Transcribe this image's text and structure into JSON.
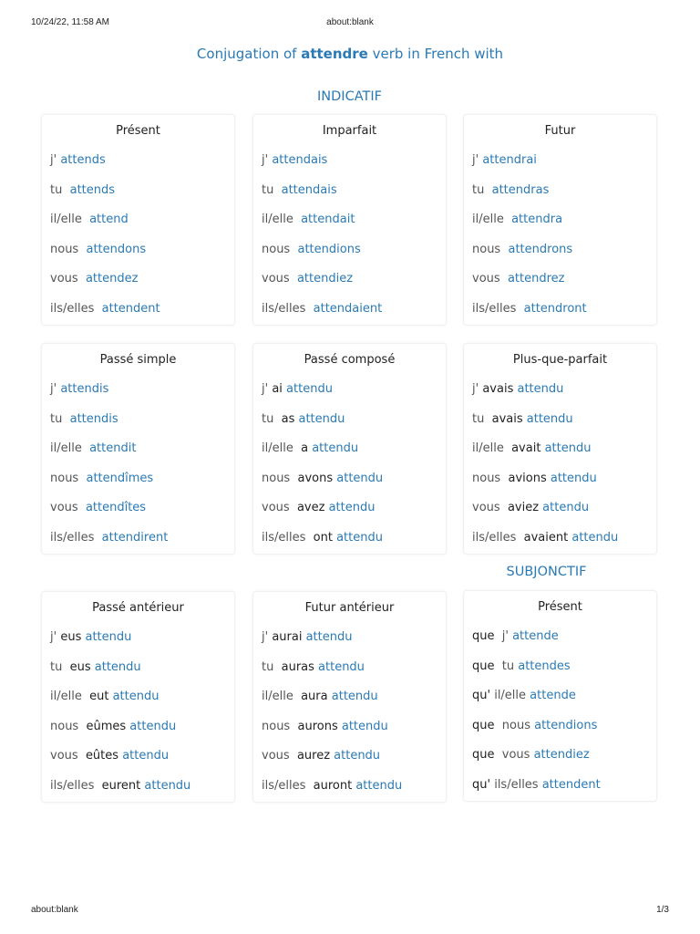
{
  "header": {
    "datetime": "10/24/22, 11:58 AM",
    "url": "about:blank"
  },
  "footer": {
    "url": "about:blank",
    "page": "1/3"
  },
  "title": {
    "prefix": "Conjugation of ",
    "verb": "attendre",
    "suffix": " verb in French with"
  },
  "colors": {
    "accent": "#2a7ab5",
    "pronoun": "#555555",
    "auxiliary": "#222222"
  },
  "sections": [
    {
      "label": "INDICATIF"
    },
    {
      "label": "SUBJONCTIF"
    }
  ],
  "cards": [
    {
      "title": "Présent",
      "rows": [
        [
          [
            "p",
            "j' "
          ],
          [
            "v",
            "attends"
          ]
        ],
        [
          [
            "p",
            "tu  "
          ],
          [
            "v",
            "attends"
          ]
        ],
        [
          [
            "p",
            "il/elle  "
          ],
          [
            "v",
            "attend"
          ]
        ],
        [
          [
            "p",
            "nous  "
          ],
          [
            "v",
            "attendons"
          ]
        ],
        [
          [
            "p",
            "vous  "
          ],
          [
            "v",
            "attendez"
          ]
        ],
        [
          [
            "p",
            "ils/elles  "
          ],
          [
            "v",
            "attendent"
          ]
        ]
      ]
    },
    {
      "title": "Imparfait",
      "rows": [
        [
          [
            "p",
            "j' "
          ],
          [
            "v",
            "attendais"
          ]
        ],
        [
          [
            "p",
            "tu  "
          ],
          [
            "v",
            "attendais"
          ]
        ],
        [
          [
            "p",
            "il/elle  "
          ],
          [
            "v",
            "attendait"
          ]
        ],
        [
          [
            "p",
            "nous  "
          ],
          [
            "v",
            "attendions"
          ]
        ],
        [
          [
            "p",
            "vous  "
          ],
          [
            "v",
            "attendiez"
          ]
        ],
        [
          [
            "p",
            "ils/elles  "
          ],
          [
            "v",
            "attendaient"
          ]
        ]
      ]
    },
    {
      "title": "Futur",
      "rows": [
        [
          [
            "p",
            "j' "
          ],
          [
            "v",
            "attendrai"
          ]
        ],
        [
          [
            "p",
            "tu  "
          ],
          [
            "v",
            "attendras"
          ]
        ],
        [
          [
            "p",
            "il/elle  "
          ],
          [
            "v",
            "attendra"
          ]
        ],
        [
          [
            "p",
            "nous  "
          ],
          [
            "v",
            "attendrons"
          ]
        ],
        [
          [
            "p",
            "vous  "
          ],
          [
            "v",
            "attendrez"
          ]
        ],
        [
          [
            "p",
            "ils/elles  "
          ],
          [
            "v",
            "attendront"
          ]
        ]
      ]
    },
    {
      "title": "Passé simple",
      "rows": [
        [
          [
            "p",
            "j' "
          ],
          [
            "v",
            "attendis"
          ]
        ],
        [
          [
            "p",
            "tu  "
          ],
          [
            "v",
            "attendis"
          ]
        ],
        [
          [
            "p",
            "il/elle  "
          ],
          [
            "v",
            "attendit"
          ]
        ],
        [
          [
            "p",
            "nous  "
          ],
          [
            "v",
            "attendîmes"
          ]
        ],
        [
          [
            "p",
            "vous  "
          ],
          [
            "v",
            "attendîtes"
          ]
        ],
        [
          [
            "p",
            "ils/elles  "
          ],
          [
            "v",
            "attendirent"
          ]
        ]
      ]
    },
    {
      "title": "Passé composé",
      "rows": [
        [
          [
            "p",
            "j' "
          ],
          [
            "a",
            "ai "
          ],
          [
            "v",
            "attendu"
          ]
        ],
        [
          [
            "p",
            "tu  "
          ],
          [
            "a",
            "as "
          ],
          [
            "v",
            "attendu"
          ]
        ],
        [
          [
            "p",
            "il/elle  "
          ],
          [
            "a",
            "a "
          ],
          [
            "v",
            "attendu"
          ]
        ],
        [
          [
            "p",
            "nous  "
          ],
          [
            "a",
            "avons "
          ],
          [
            "v",
            "attendu"
          ]
        ],
        [
          [
            "p",
            "vous  "
          ],
          [
            "a",
            "avez "
          ],
          [
            "v",
            "attendu"
          ]
        ],
        [
          [
            "p",
            "ils/elles  "
          ],
          [
            "a",
            "ont "
          ],
          [
            "v",
            "attendu"
          ]
        ]
      ]
    },
    {
      "title": "Plus-que-parfait",
      "rows": [
        [
          [
            "p",
            "j' "
          ],
          [
            "a",
            "avais "
          ],
          [
            "v",
            "attendu"
          ]
        ],
        [
          [
            "p",
            "tu  "
          ],
          [
            "a",
            "avais "
          ],
          [
            "v",
            "attendu"
          ]
        ],
        [
          [
            "p",
            "il/elle  "
          ],
          [
            "a",
            "avait "
          ],
          [
            "v",
            "attendu"
          ]
        ],
        [
          [
            "p",
            "nous  "
          ],
          [
            "a",
            "avions "
          ],
          [
            "v",
            "attendu"
          ]
        ],
        [
          [
            "p",
            "vous  "
          ],
          [
            "a",
            "aviez "
          ],
          [
            "v",
            "attendu"
          ]
        ],
        [
          [
            "p",
            "ils/elles  "
          ],
          [
            "a",
            "avaient "
          ],
          [
            "v",
            "attendu"
          ]
        ]
      ]
    },
    {
      "title": "Passé antérieur",
      "rows": [
        [
          [
            "p",
            "j' "
          ],
          [
            "a",
            "eus "
          ],
          [
            "v",
            "attendu"
          ]
        ],
        [
          [
            "p",
            "tu  "
          ],
          [
            "a",
            "eus "
          ],
          [
            "v",
            "attendu"
          ]
        ],
        [
          [
            "p",
            "il/elle  "
          ],
          [
            "a",
            "eut "
          ],
          [
            "v",
            "attendu"
          ]
        ],
        [
          [
            "p",
            "nous  "
          ],
          [
            "a",
            "eûmes "
          ],
          [
            "v",
            "attendu"
          ]
        ],
        [
          [
            "p",
            "vous  "
          ],
          [
            "a",
            "eûtes "
          ],
          [
            "v",
            "attendu"
          ]
        ],
        [
          [
            "p",
            "ils/elles  "
          ],
          [
            "a",
            "eurent "
          ],
          [
            "v",
            "attendu"
          ]
        ]
      ]
    },
    {
      "title": "Futur antérieur",
      "rows": [
        [
          [
            "p",
            "j' "
          ],
          [
            "a",
            "aurai "
          ],
          [
            "v",
            "attendu"
          ]
        ],
        [
          [
            "p",
            "tu  "
          ],
          [
            "a",
            "auras "
          ],
          [
            "v",
            "attendu"
          ]
        ],
        [
          [
            "p",
            "il/elle  "
          ],
          [
            "a",
            "aura "
          ],
          [
            "v",
            "attendu"
          ]
        ],
        [
          [
            "p",
            "nous  "
          ],
          [
            "a",
            "aurons "
          ],
          [
            "v",
            "attendu"
          ]
        ],
        [
          [
            "p",
            "vous  "
          ],
          [
            "a",
            "aurez "
          ],
          [
            "v",
            "attendu"
          ]
        ],
        [
          [
            "p",
            "ils/elles  "
          ],
          [
            "a",
            "auront "
          ],
          [
            "v",
            "attendu"
          ]
        ]
      ]
    },
    {
      "title": "Présent",
      "rows": [
        [
          [
            "a",
            "que  "
          ],
          [
            "p",
            "j' "
          ],
          [
            "v",
            "attende"
          ]
        ],
        [
          [
            "a",
            "que  "
          ],
          [
            "p",
            "tu "
          ],
          [
            "v",
            "attendes"
          ]
        ],
        [
          [
            "a",
            "qu' "
          ],
          [
            "p",
            "il/elle "
          ],
          [
            "v",
            "attende"
          ]
        ],
        [
          [
            "a",
            "que  "
          ],
          [
            "p",
            "nous "
          ],
          [
            "v",
            "attendions"
          ]
        ],
        [
          [
            "a",
            "que  "
          ],
          [
            "p",
            "vous "
          ],
          [
            "v",
            "attendiez"
          ]
        ],
        [
          [
            "a",
            "qu' "
          ],
          [
            "p",
            "ils/elles "
          ],
          [
            "v",
            "attendent"
          ]
        ]
      ]
    }
  ]
}
